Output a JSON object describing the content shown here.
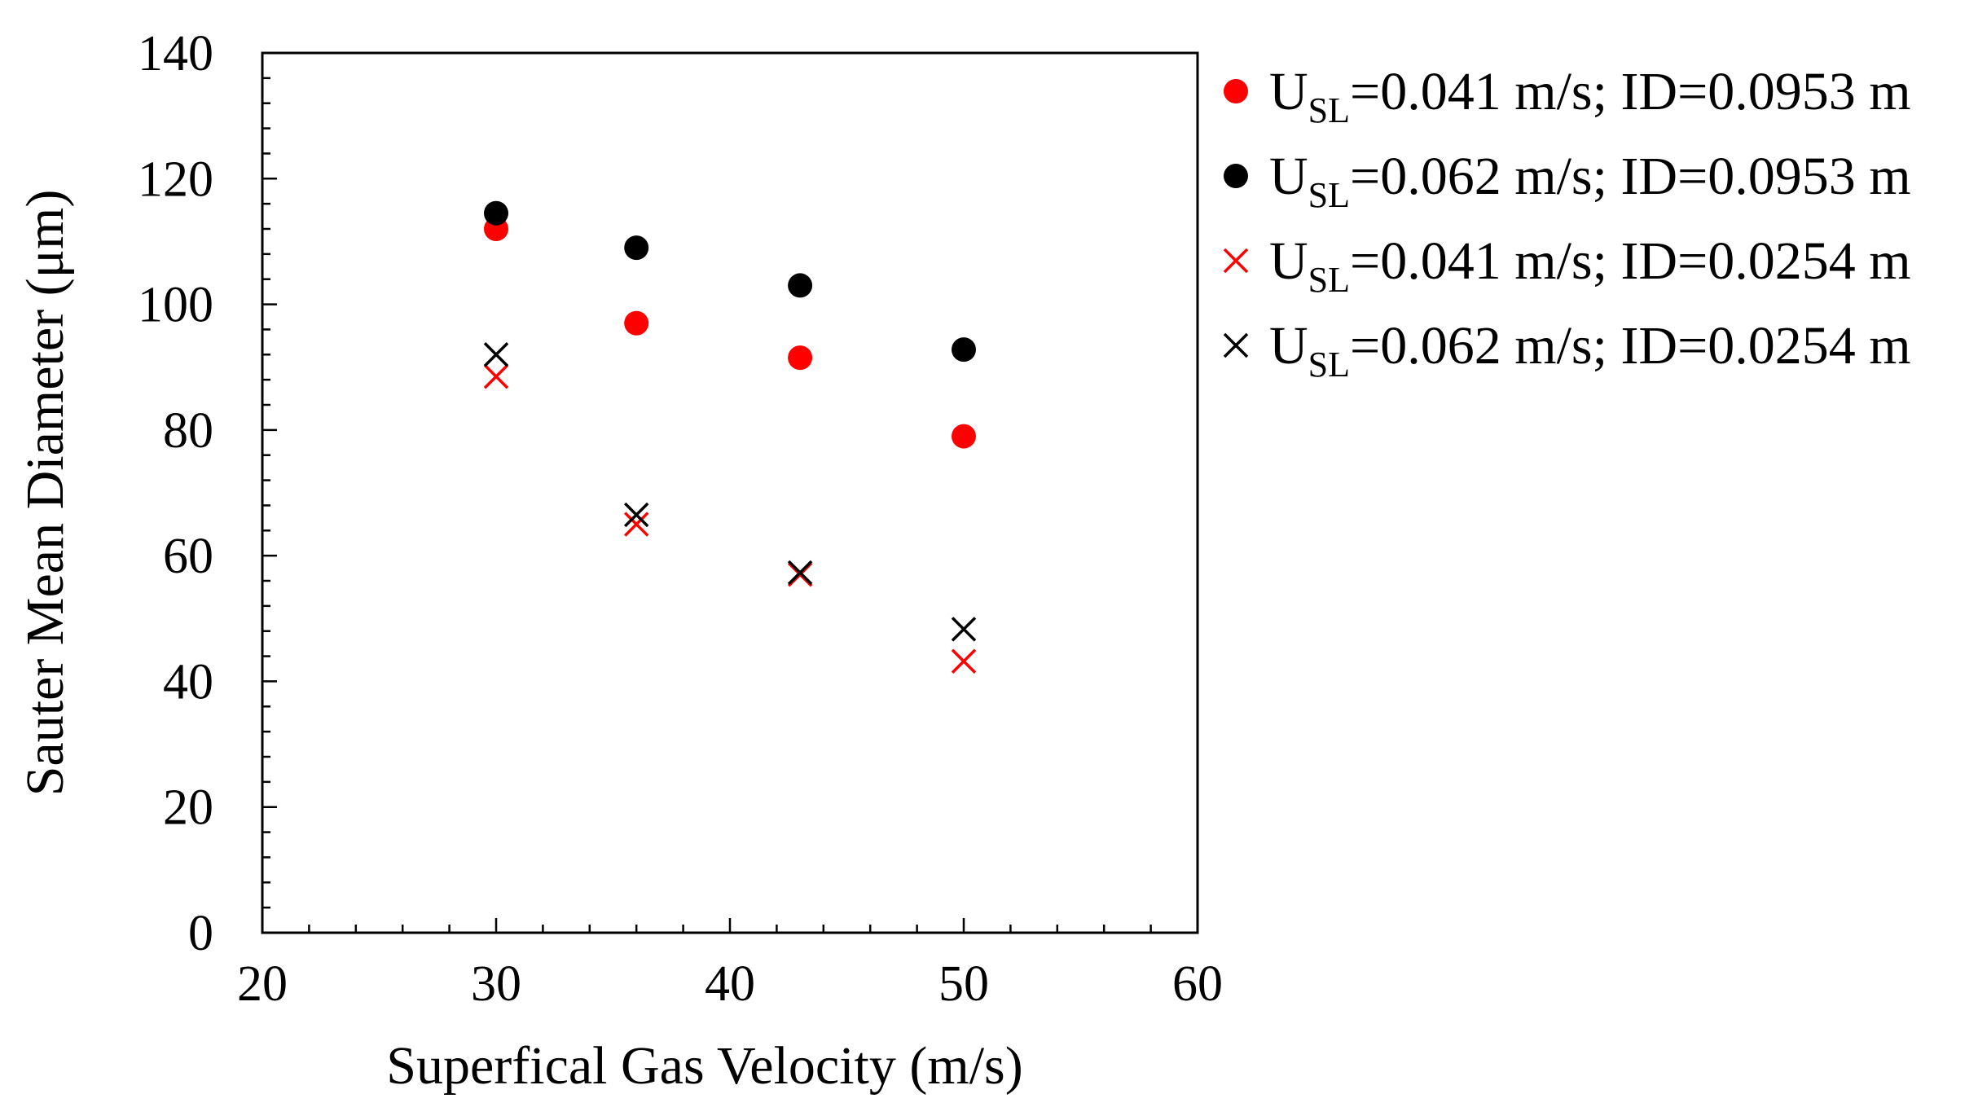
{
  "chart_data": {
    "type": "scatter",
    "title": "",
    "xlabel": "Superfical Gas Velocity (m/s)",
    "ylabel": "Sauter Mean Diameter (μm)",
    "xlim": [
      20,
      60
    ],
    "ylim": [
      0,
      140
    ],
    "x_major_step": 10,
    "x_minor_step": 2,
    "y_major_step": 20,
    "y_minor_step": 4,
    "x_ticks": [
      "20",
      "30",
      "40",
      "50",
      "60"
    ],
    "y_ticks": [
      "0",
      "20",
      "40",
      "60",
      "80",
      "100",
      "120",
      "140"
    ],
    "grid": false,
    "legend_position": "outside-right-top",
    "series": [
      {
        "name_main": "U",
        "name_sub": "SL",
        "name_rest": "=0.041 m/s; ID=0.0953 m",
        "marker": "circle",
        "color": "#ff0000",
        "points": [
          [
            30,
            112
          ],
          [
            36,
            97
          ],
          [
            43,
            91.5
          ],
          [
            50,
            79
          ]
        ]
      },
      {
        "name_main": "U",
        "name_sub": "SL",
        "name_rest": "=0.062 m/s; ID=0.0953 m",
        "marker": "circle",
        "color": "#000000",
        "points": [
          [
            30,
            114.5
          ],
          [
            36,
            109
          ],
          [
            43,
            103
          ],
          [
            50,
            92.8
          ]
        ]
      },
      {
        "name_main": "U",
        "name_sub": "SL",
        "name_rest": "=0.041 m/s; ID=0.0254 m",
        "marker": "x",
        "color": "#ff0000",
        "points": [
          [
            30,
            88.5
          ],
          [
            36,
            65
          ],
          [
            43,
            57
          ],
          [
            50,
            43.2
          ]
        ]
      },
      {
        "name_main": "U",
        "name_sub": "SL",
        "name_rest": "=0.062 m/s; ID=0.0254 m",
        "marker": "x",
        "color": "#000000",
        "points": [
          [
            30,
            92
          ],
          [
            36,
            66.5
          ],
          [
            43,
            57.3
          ],
          [
            50,
            48.3
          ]
        ]
      }
    ]
  }
}
